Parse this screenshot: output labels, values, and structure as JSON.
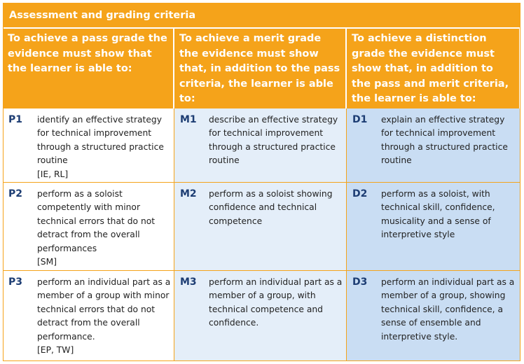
{
  "title": "Assessment and grading criteria",
  "headers": {
    "pass": "To achieve a pass grade the evidence must show that the learner is able to:",
    "merit": "To achieve a merit grade the evidence must show that, in addition to the pass criteria, the learner is able to:",
    "distinction": "To achieve a distinction grade the evidence must show that, in addition to the pass and merit criteria, the learner is able to:"
  },
  "rows": [
    {
      "pass": {
        "code": "P1",
        "text": "identify an effective strategy for technical improvement through a structured practice routine",
        "tag": "[IE, RL]"
      },
      "merit": {
        "code": "M1",
        "text": "describe an effective strategy for technical improvement through a structured practice routine"
      },
      "distinction": {
        "code": "D1",
        "text": "explain an effective strategy for technical improvement through a structured practice routine"
      }
    },
    {
      "pass": {
        "code": "P2",
        "text": "perform as a soloist competently with minor technical errors that do not detract from the overall performances",
        "tag": "[SM]"
      },
      "merit": {
        "code": "M2",
        "text": "perform as a soloist showing confidence and technical competence"
      },
      "distinction": {
        "code": "D2",
        "text": "perform as a soloist, with technical skill, confidence, musicality and a sense of interpretive style"
      }
    },
    {
      "pass": {
        "code": "P3",
        "text": "perform an individual part as a member of a group with minor technical errors that do not detract from the overall performance.",
        "tag": "[EP, TW]"
      },
      "merit": {
        "code": "M3",
        "text": "perform an individual part as a member of a group, with technical competence and confidence."
      },
      "distinction": {
        "code": "D3",
        "text": "perform an individual part as a member of a group, showing technical skill, confidence, a sense of ensemble and interpretive style."
      }
    }
  ],
  "colors": {
    "header_orange": "#f5a31a",
    "merit_fill": "#e4eef9",
    "distinction_fill": "#c9ddf3",
    "code_blue": "#1d3d73"
  }
}
